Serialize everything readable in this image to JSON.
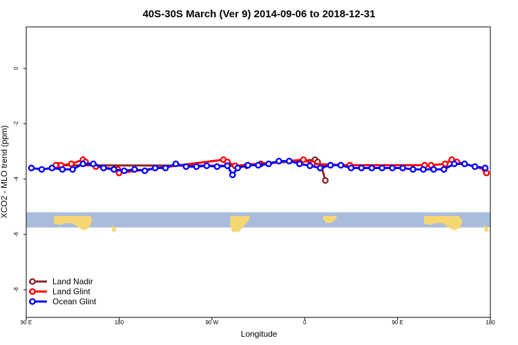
{
  "chart_data": {
    "type": "line",
    "title": "40S-30S March (Ver 9)   2014-09-06 to 2018-12-31",
    "xlabel": "Longitude",
    "ylabel": "XCO2 - MLO trend (ppm)",
    "xlim": [
      90,
      450
    ],
    "ylim": [
      -9.0,
      1.5
    ],
    "x_ticks": [
      {
        "value": 90,
        "label": "90 E"
      },
      {
        "value": 162,
        "label": "180"
      },
      {
        "value": 234,
        "label": "90 W"
      },
      {
        "value": 306,
        "label": "0"
      },
      {
        "value": 378,
        "label": "90 E"
      },
      {
        "value": 450,
        "label": "180"
      }
    ],
    "y_ticks": [
      0,
      -2,
      -4,
      -6,
      -8
    ],
    "legend_position": "bottom-left",
    "map_strip": {
      "y_range": [
        -5.2,
        -5.75
      ],
      "ocean_color": "#a9bcdc",
      "land_color": "#f7d774"
    },
    "series": [
      {
        "name": "Land Nadir",
        "color": "#8b2323",
        "points": [
          [
            114,
            -3.5
          ],
          [
            261,
            -3.52
          ],
          [
            272,
            -3.45
          ],
          [
            314,
            -3.3
          ],
          [
            316,
            -3.38
          ],
          [
            319,
            -3.55
          ],
          [
            322,
            -4.05
          ]
        ]
      },
      {
        "name": "Land Glint",
        "color": "#ff0000",
        "points": [
          [
            113,
            -3.5
          ],
          [
            117,
            -3.5
          ],
          [
            125,
            -3.45
          ],
          [
            134,
            -3.3
          ],
          [
            136,
            -3.38
          ],
          [
            144,
            -3.55
          ],
          [
            161,
            -3.65
          ],
          [
            162,
            -3.78
          ],
          [
            243,
            -3.3
          ],
          [
            246,
            -3.38
          ],
          [
            252,
            -3.52
          ],
          [
            305,
            -3.3
          ],
          [
            312,
            -3.45
          ],
          [
            341,
            -3.5
          ],
          [
            399,
            -3.5
          ],
          [
            404,
            -3.5
          ],
          [
            415,
            -3.45
          ],
          [
            420,
            -3.3
          ],
          [
            424,
            -3.38
          ],
          [
            446,
            -3.65
          ],
          [
            447,
            -3.78
          ]
        ]
      },
      {
        "name": "Ocean Glint",
        "color": "#0000ff",
        "points": [
          [
            94,
            -3.6
          ],
          [
            102,
            -3.65
          ],
          [
            110,
            -3.6
          ],
          [
            118,
            -3.65
          ],
          [
            126,
            -3.65
          ],
          [
            134,
            -3.45
          ],
          [
            142,
            -3.45
          ],
          [
            150,
            -3.6
          ],
          [
            158,
            -3.65
          ],
          [
            166,
            -3.7
          ],
          [
            174,
            -3.65
          ],
          [
            182,
            -3.7
          ],
          [
            190,
            -3.6
          ],
          [
            198,
            -3.6
          ],
          [
            206,
            -3.45
          ],
          [
            214,
            -3.55
          ],
          [
            222,
            -3.55
          ],
          [
            230,
            -3.52
          ],
          [
            238,
            -3.55
          ],
          [
            246,
            -3.52
          ],
          [
            250,
            -3.85
          ],
          [
            254,
            -3.6
          ],
          [
            262,
            -3.5
          ],
          [
            270,
            -3.5
          ],
          [
            278,
            -3.45
          ],
          [
            286,
            -3.35
          ],
          [
            294,
            -3.35
          ],
          [
            302,
            -3.45
          ],
          [
            310,
            -3.52
          ],
          [
            318,
            -3.6
          ],
          [
            326,
            -3.5
          ],
          [
            334,
            -3.5
          ],
          [
            342,
            -3.6
          ],
          [
            350,
            -3.6
          ],
          [
            358,
            -3.6
          ],
          [
            366,
            -3.6
          ],
          [
            374,
            -3.6
          ],
          [
            382,
            -3.6
          ],
          [
            390,
            -3.65
          ],
          [
            398,
            -3.65
          ],
          [
            406,
            -3.65
          ],
          [
            414,
            -3.65
          ],
          [
            422,
            -3.45
          ],
          [
            430,
            -3.45
          ],
          [
            438,
            -3.55
          ],
          [
            446,
            -3.6
          ]
        ]
      }
    ]
  }
}
